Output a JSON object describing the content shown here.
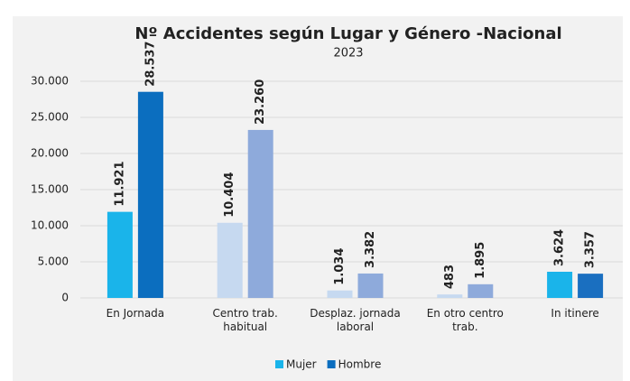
{
  "chart_data": {
    "type": "bar",
    "title": "Nº Accidentes según Lugar y Género -Nacional",
    "subtitle": "2023",
    "categories": [
      "En Jornada",
      "Centro trab. habitual",
      "Desplaz. jornada laboral",
      "En otro centro trab.",
      "In itinere"
    ],
    "series": [
      {
        "name": "Mujer",
        "color": "#1ab4ea",
        "point_colors": [
          "#1ab4ea",
          "#c6d9f0",
          "#c6d9f0",
          "#c6d9f0",
          "#1ab4ea"
        ],
        "values": [
          11921,
          10404,
          1034,
          483,
          3624
        ],
        "value_labels": [
          "11.921",
          "10.404",
          "1.034",
          "483",
          "3.624"
        ]
      },
      {
        "name": "Hombre",
        "color": "#0b6ebf",
        "point_colors": [
          "#0b6ebf",
          "#8eaadb",
          "#8eaadb",
          "#8eaadb",
          "#1a6fc0"
        ],
        "values": [
          28537,
          23260,
          3382,
          1895,
          3357
        ],
        "value_labels": [
          "28.537",
          "23.260",
          "3.382",
          "1.895",
          "3.357"
        ]
      }
    ],
    "ylim": [
      0,
      30000
    ],
    "yticks": [
      0,
      {
        "value": 5000,
        "label": "5.000"
      },
      {
        "value": 10000,
        "label": "10.000"
      },
      {
        "value": 15000,
        "label": "15.000"
      },
      {
        "value": 20000,
        "label": "20.000"
      },
      {
        "value": 25000,
        "label": "25.000"
      },
      {
        "value": 30000,
        "label": "30.000"
      }
    ],
    "grid": true,
    "legend": "bottom"
  }
}
